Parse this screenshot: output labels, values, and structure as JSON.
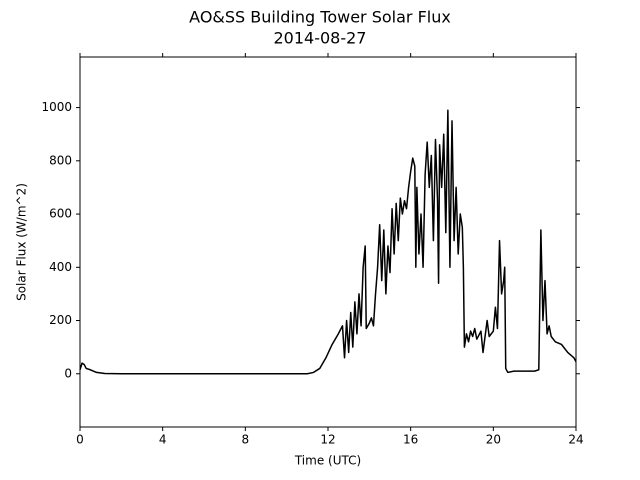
{
  "chart_data": {
    "type": "line",
    "title": "AO&SS Building Tower Solar Flux",
    "subtitle": "2014-08-27",
    "xlabel": "Time (UTC)",
    "ylabel": "Solar Flux (W/m^2)",
    "color": "#000000",
    "xlim": [
      0,
      24
    ],
    "xticks": [
      0,
      4,
      8,
      12,
      16,
      20,
      24
    ],
    "ylim": [
      -200,
      1190
    ],
    "yticks": [
      0,
      200,
      400,
      600,
      800,
      1000
    ],
    "grid": false,
    "x": [
      0,
      0.1,
      0.2,
      0.3,
      0.5,
      0.8,
      1.2,
      2,
      11,
      11.3,
      11.6,
      11.9,
      12.2,
      12.5,
      12.7,
      12.8,
      12.9,
      13.0,
      13.1,
      13.2,
      13.3,
      13.4,
      13.5,
      13.6,
      13.7,
      13.8,
      13.85,
      14.0,
      14.1,
      14.2,
      14.3,
      14.4,
      14.5,
      14.6,
      14.7,
      14.8,
      14.9,
      15.0,
      15.1,
      15.2,
      15.3,
      15.4,
      15.5,
      15.6,
      15.7,
      15.8,
      15.9,
      16.0,
      16.1,
      16.2,
      16.25,
      16.3,
      16.4,
      16.5,
      16.6,
      16.7,
      16.8,
      16.9,
      17.0,
      17.1,
      17.2,
      17.3,
      17.35,
      17.4,
      17.5,
      17.6,
      17.7,
      17.8,
      17.9,
      18.0,
      18.1,
      18.2,
      18.3,
      18.4,
      18.5,
      18.55,
      18.6,
      18.7,
      18.8,
      18.9,
      19.0,
      19.1,
      19.2,
      19.4,
      19.5,
      19.7,
      19.8,
      20.0,
      20.1,
      20.2,
      20.3,
      20.4,
      20.5,
      20.55,
      20.6,
      20.7,
      21,
      21.5,
      22,
      22.2,
      22.3,
      22.4,
      22.5,
      22.6,
      22.7,
      22.8,
      23.0,
      23.3,
      23.6,
      23.9,
      24
    ],
    "values": [
      15,
      40,
      35,
      20,
      15,
      5,
      1,
      0,
      0,
      5,
      20,
      60,
      110,
      150,
      180,
      60,
      200,
      80,
      230,
      100,
      270,
      150,
      300,
      180,
      400,
      480,
      170,
      190,
      210,
      180,
      300,
      400,
      560,
      350,
      540,
      300,
      480,
      380,
      620,
      450,
      640,
      500,
      660,
      600,
      650,
      620,
      700,
      760,
      810,
      780,
      400,
      700,
      450,
      600,
      400,
      750,
      870,
      700,
      820,
      500,
      880,
      650,
      340,
      860,
      700,
      900,
      530,
      990,
      400,
      950,
      500,
      700,
      450,
      600,
      550,
      400,
      100,
      150,
      120,
      160,
      140,
      170,
      130,
      160,
      80,
      200,
      140,
      160,
      250,
      170,
      500,
      300,
      350,
      400,
      20,
      5,
      10,
      10,
      10,
      15,
      540,
      200,
      350,
      150,
      180,
      140,
      120,
      110,
      80,
      60,
      45
    ]
  }
}
